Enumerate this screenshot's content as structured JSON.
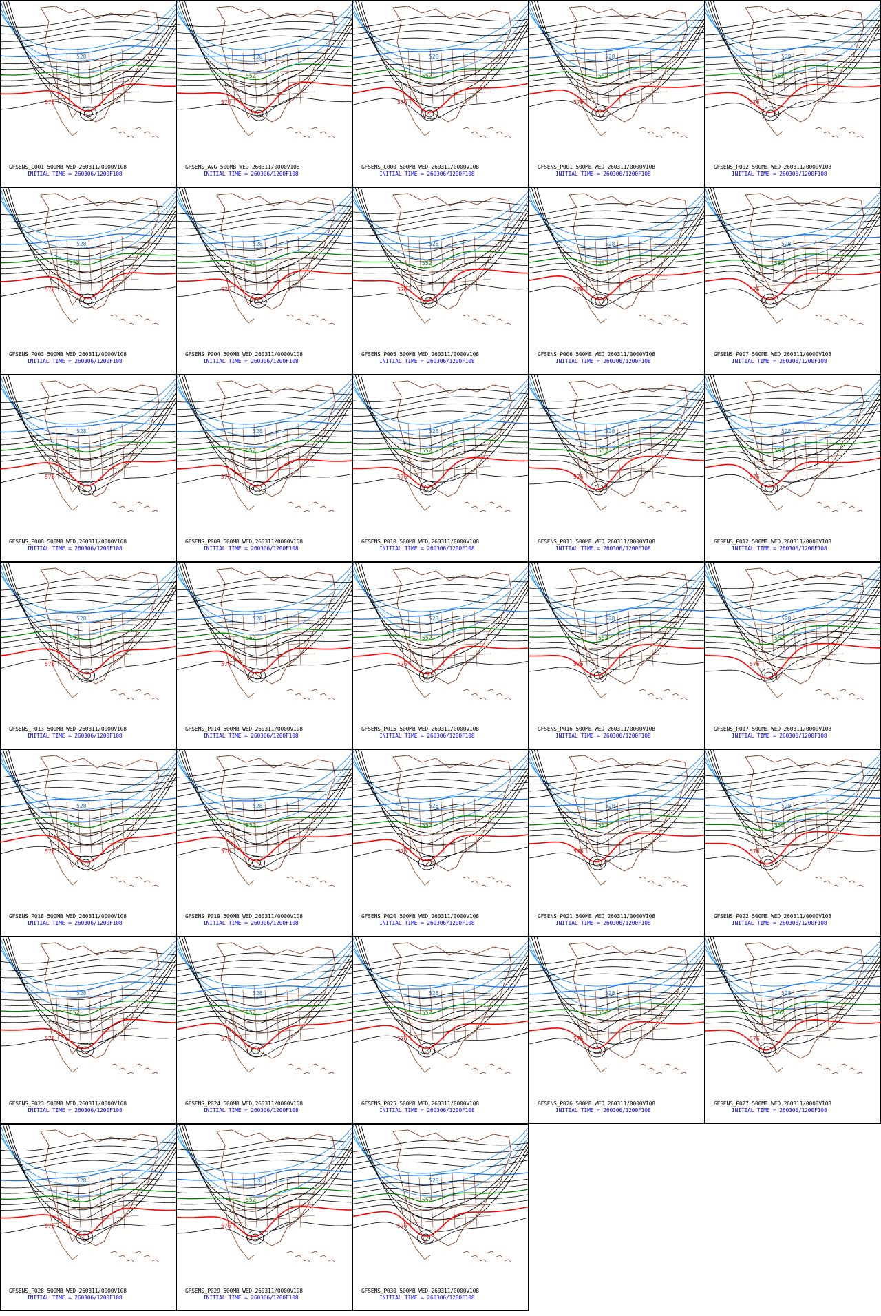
{
  "colors": {
    "border": "#000000",
    "contour": "#000000",
    "coast": "#8b3a1a",
    "line_528": "#1e6fe0",
    "line_552": "#008000",
    "line_576": "#ff0000",
    "high_latitude": "#1e90ff",
    "caption_title": "#000000",
    "caption_time": "#0000ff"
  },
  "contour_labels": {
    "blue": "528",
    "green": "552",
    "red": "576"
  },
  "initial_time_text": "INITIAL TIME = 260306/1200F108",
  "panels": [
    {
      "title": "GFSENS_C001 500MB WED 260311/0000V108"
    },
    {
      "title": "GFSENS_AVG 500MB WED 260311/0000V108"
    },
    {
      "title": "GFSENS_C000 500MB WED 260311/0000V108"
    },
    {
      "title": "GFSENS_P001 500MB WED 260311/0000V108"
    },
    {
      "title": "GFSENS_P002 500MB WED 260311/0000V108"
    },
    {
      "title": "GFSENS_P003 500MB WED 260311/0000V108"
    },
    {
      "title": "GFSENS_P004 500MB WED 260311/0000V108"
    },
    {
      "title": "GFSENS_P005 500MB WED 260311/0000V108"
    },
    {
      "title": "GFSENS_P006 500MB WED 260311/0000V108"
    },
    {
      "title": "GFSENS_P007 500MB WED 260311/0000V108"
    },
    {
      "title": "GFSENS_P008 500MB WED 260311/0000V108"
    },
    {
      "title": "GFSENS_P009 500MB WED 260311/0000V108"
    },
    {
      "title": "GFSENS_P010 500MB WED 260311/0000V108"
    },
    {
      "title": "GFSENS_P011 500MB WED 260311/0000V108"
    },
    {
      "title": "GFSENS_P012 500MB WED 260311/0000V108"
    },
    {
      "title": "GFSENS_P013 500MB WED 260311/0000V108"
    },
    {
      "title": "GFSENS_P014 500MB WED 260311/0000V108"
    },
    {
      "title": "GFSENS_P015 500MB WED 260311/0000V108"
    },
    {
      "title": "GFSENS_P016 500MB WED 260311/0000V108"
    },
    {
      "title": "GFSENS_P017 500MB WED 260311/0000V108"
    },
    {
      "title": "GFSENS_P018 500MB WED 260311/0000V108"
    },
    {
      "title": "GFSENS_P019 500MB WED 260311/0000V108"
    },
    {
      "title": "GFSENS_P020 500MB WED 260311/0000V108"
    },
    {
      "title": "GFSENS_P021 500MB WED 260311/0000V108"
    },
    {
      "title": "GFSENS_P022 500MB WED 260311/0000V108"
    },
    {
      "title": "GFSENS_P023 500MB WED 260311/0000V108"
    },
    {
      "title": "GFSENS_P024 500MB WED 260311/0000V108"
    },
    {
      "title": "GFSENS_P025 500MB WED 260311/0000V108"
    },
    {
      "title": "GFSENS_P026 500MB WED 260311/0000V108"
    },
    {
      "title": "GFSENS_P027 500MB WED 260311/0000V108"
    },
    {
      "title": "GFSENS_P028 500MB WED 260311/0000V108"
    },
    {
      "title": "GFSENS_P029 500MB WED 260311/0000V108"
    },
    {
      "title": "GFSENS_P030 500MB WED 260311/0000V108"
    }
  ]
}
